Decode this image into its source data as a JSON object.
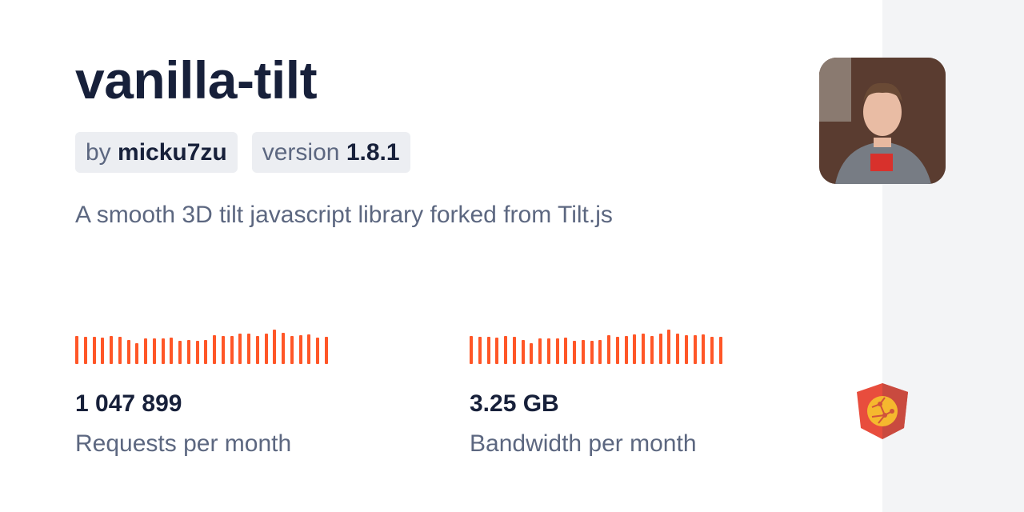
{
  "package": {
    "name": "vanilla-tilt",
    "by_prefix": "by",
    "author": "micku7zu",
    "version_prefix": "version",
    "version": "1.8.1",
    "description": "A smooth 3D tilt javascript library forked from Tilt.js"
  },
  "stats": [
    {
      "value": "1 047 899",
      "label": "Requests per month",
      "trend": [
        34,
        33,
        33,
        32,
        34,
        33,
        29,
        25,
        31,
        31,
        31,
        32,
        28,
        29,
        28,
        29,
        35,
        34,
        34,
        37,
        37,
        34,
        37,
        42,
        38,
        34,
        35,
        36,
        32,
        33
      ]
    },
    {
      "value": "3.25 GB",
      "label": "Bandwidth per month",
      "trend": [
        34,
        33,
        33,
        32,
        34,
        33,
        29,
        25,
        31,
        31,
        31,
        32,
        28,
        29,
        28,
        29,
        35,
        33,
        34,
        36,
        37,
        34,
        37,
        42,
        37,
        35,
        35,
        36,
        33,
        33
      ]
    }
  ],
  "colors": {
    "bar": "#ff5627",
    "title": "#17203a",
    "muted": "#5c6780"
  },
  "icons": {
    "avatar": "author-photo",
    "logo": "jsdelivr-logo"
  }
}
